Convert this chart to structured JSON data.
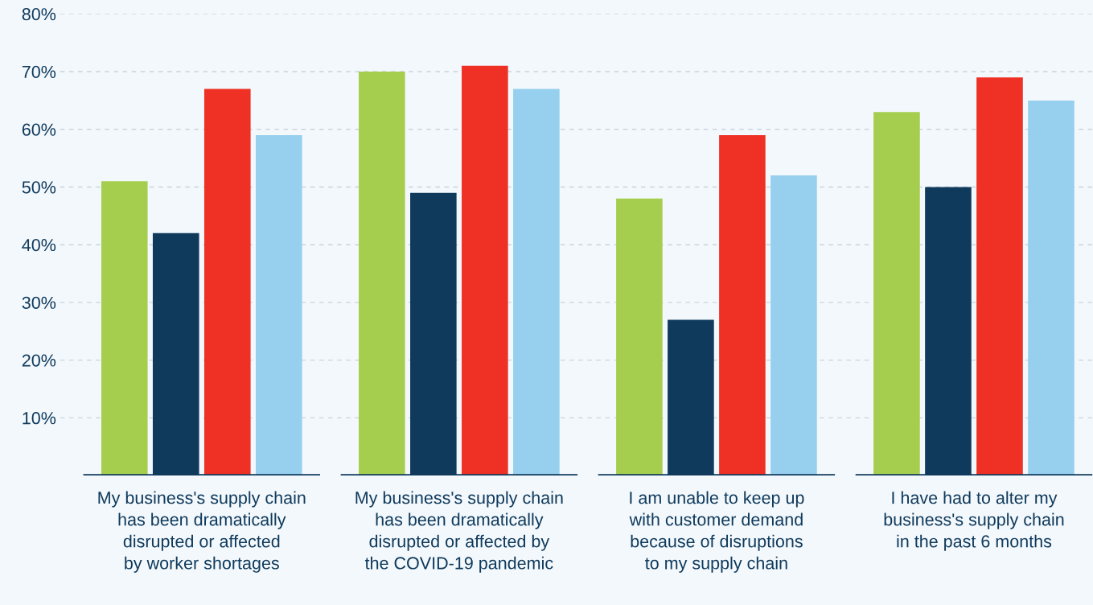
{
  "chart_data": {
    "type": "bar",
    "categories": [
      "My business's supply chain\nhas been dramatically\ndisrupted or affected\nby worker shortages",
      "My business's supply chain\nhas been dramatically\ndisrupted or affected by\nthe COVID-19 pandemic",
      "I am unable to keep up\nwith customer demand\nbecause of disruptions\nto my supply chain",
      "I have had to alter my\nbusiness's supply chain\nin the past 6 months"
    ],
    "series": [
      {
        "color": "#a6ce4e",
        "values": [
          51,
          70,
          48,
          63
        ]
      },
      {
        "color": "#0f3a5c",
        "values": [
          42,
          49,
          27,
          50
        ]
      },
      {
        "color": "#ee3124",
        "values": [
          67,
          71,
          59,
          69
        ]
      },
      {
        "color": "#97cfee",
        "values": [
          59,
          67,
          52,
          65
        ]
      }
    ],
    "ylim": [
      0,
      80
    ],
    "yticks": [
      {
        "value": 10,
        "label": "10%"
      },
      {
        "value": 20,
        "label": "20%"
      },
      {
        "value": 30,
        "label": "30%"
      },
      {
        "value": 40,
        "label": "40%"
      },
      {
        "value": 50,
        "label": "50%"
      },
      {
        "value": 60,
        "label": "60%"
      },
      {
        "value": 70,
        "label": "70%"
      },
      {
        "value": 80,
        "label": "80%"
      }
    ],
    "grid": "y",
    "legend": false
  }
}
